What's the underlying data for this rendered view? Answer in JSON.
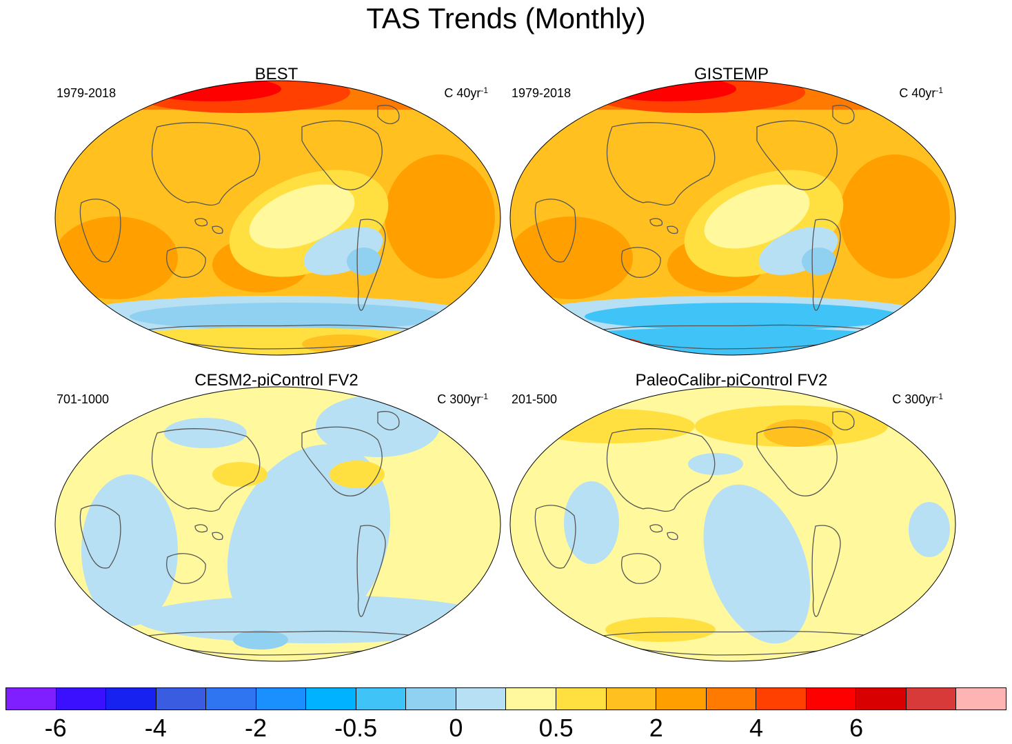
{
  "title": "TAS Trends (Monthly)",
  "panels": [
    {
      "title": "BEST",
      "period": "1979-2018",
      "units": "C 40yr",
      "units_exp": "-1",
      "scheme": "warm"
    },
    {
      "title": "GISTEMP",
      "period": "1979-2018",
      "units": "C 40yr",
      "units_exp": "-1",
      "scheme": "warm2"
    },
    {
      "title": "CESM2-piControl FV2",
      "period": "701-1000",
      "units": "C 300yr",
      "units_exp": "-1",
      "scheme": "neutral"
    },
    {
      "title": "PaleoCalibr-piControl FV2",
      "period": "201-500",
      "units": "C 300yr",
      "units_exp": "-1",
      "scheme": "neutral2"
    }
  ],
  "colorbar": {
    "colors": [
      "#7f1fff",
      "#3a10ff",
      "#1822f0",
      "#3a5ce0",
      "#2f74f0",
      "#1a90ff",
      "#00b2ff",
      "#40c4f8",
      "#90d0f0",
      "#b8e0f4",
      "#fff89c",
      "#ffe040",
      "#ffc020",
      "#ffa000",
      "#ff7a00",
      "#ff4000",
      "#ff0000",
      "#d80000",
      "#d83a3a",
      "#ffb4b4"
    ],
    "labels": [
      "-6",
      "-4",
      "-2",
      "-0.5",
      "0",
      "0.5",
      "2",
      "4",
      "6"
    ]
  }
}
